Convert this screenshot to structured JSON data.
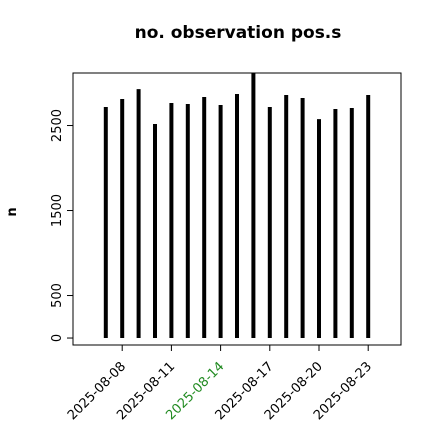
{
  "chart_data": {
    "type": "line",
    "title": "no. observation pos.s",
    "y_label": "n",
    "x": [
      "2025-08-07",
      "2025-08-08",
      "2025-08-09",
      "2025-08-10",
      "2025-08-11",
      "2025-08-12",
      "2025-08-13",
      "2025-08-14",
      "2025-08-15",
      "2025-08-16",
      "2025-08-17",
      "2025-08-18",
      "2025-08-19",
      "2025-08-20",
      "2025-08-21",
      "2025-08-22",
      "2025-08-23"
    ],
    "values": [
      2718,
      2812,
      2929,
      2518,
      2765,
      2753,
      2835,
      2741,
      2871,
      3200,
      2718,
      2859,
      2824,
      2576,
      2694,
      2706,
      2859
    ],
    "color": "#000000",
    "xlim": [
      "2025-08-05",
      "2025-08-25"
    ],
    "xticks": [
      "2025-08-08",
      "2025-08-11",
      "2025-08-14",
      "2025-08-17",
      "2025-08-20",
      "2025-08-23"
    ],
    "xtick_label_colors": [
      "#000000",
      "#000000",
      "#228b22",
      "#000000",
      "#000000",
      "#000000"
    ],
    "ylim": [
      -82,
      3118
    ],
    "yticks": [
      0,
      500,
      1500,
      2500
    ]
  }
}
